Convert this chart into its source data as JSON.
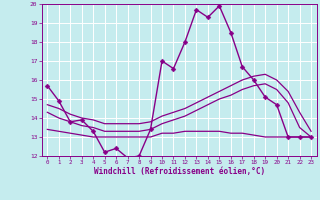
{
  "xlabel": "Windchill (Refroidissement éolien,°C)",
  "xlim": [
    -0.5,
    23.5
  ],
  "ylim": [
    12,
    20
  ],
  "yticks": [
    12,
    13,
    14,
    15,
    16,
    17,
    18,
    19,
    20
  ],
  "xticks": [
    0,
    1,
    2,
    3,
    4,
    5,
    6,
    7,
    8,
    9,
    10,
    11,
    12,
    13,
    14,
    15,
    16,
    17,
    18,
    19,
    20,
    21,
    22,
    23
  ],
  "background_color": "#c5ecee",
  "grid_color": "#ffffff",
  "line_color": "#880088",
  "curves": [
    {
      "x": [
        0,
        1,
        2,
        3,
        4,
        5,
        6,
        7,
        8,
        9,
        10,
        11,
        12,
        13,
        14,
        15,
        16,
        17,
        18,
        19,
        20,
        21,
        22,
        23
      ],
      "y": [
        15.7,
        14.9,
        13.8,
        13.9,
        13.3,
        12.2,
        12.4,
        11.9,
        12.0,
        13.4,
        17.0,
        16.6,
        18.0,
        19.7,
        19.3,
        19.9,
        18.5,
        16.7,
        16.0,
        15.1,
        14.7,
        13.0,
        13.0,
        13.0
      ],
      "marker": "D",
      "marker_size": 2.5,
      "linewidth": 1.0
    },
    {
      "x": [
        0,
        1,
        2,
        3,
        4,
        5,
        6,
        7,
        8,
        9,
        10,
        11,
        12,
        13,
        14,
        15,
        16,
        17,
        18,
        19,
        20,
        21,
        22,
        23
      ],
      "y": [
        14.7,
        14.5,
        14.2,
        14.0,
        13.9,
        13.7,
        13.7,
        13.7,
        13.7,
        13.8,
        14.1,
        14.3,
        14.5,
        14.8,
        15.1,
        15.4,
        15.7,
        16.0,
        16.2,
        16.3,
        16.0,
        15.4,
        14.3,
        13.3
      ],
      "marker": null,
      "linewidth": 0.9
    },
    {
      "x": [
        0,
        1,
        2,
        3,
        4,
        5,
        6,
        7,
        8,
        9,
        10,
        11,
        12,
        13,
        14,
        15,
        16,
        17,
        18,
        19,
        20,
        21,
        22,
        23
      ],
      "y": [
        14.3,
        14.0,
        13.8,
        13.6,
        13.5,
        13.3,
        13.3,
        13.3,
        13.3,
        13.4,
        13.7,
        13.9,
        14.1,
        14.4,
        14.7,
        15.0,
        15.2,
        15.5,
        15.7,
        15.8,
        15.5,
        14.8,
        13.5,
        13.0
      ],
      "marker": null,
      "linewidth": 0.9
    },
    {
      "x": [
        0,
        1,
        2,
        3,
        4,
        5,
        6,
        7,
        8,
        9,
        10,
        11,
        12,
        13,
        14,
        15,
        16,
        17,
        18,
        19,
        20,
        21,
        22,
        23
      ],
      "y": [
        13.4,
        13.3,
        13.2,
        13.1,
        13.0,
        13.0,
        13.0,
        13.0,
        13.0,
        13.0,
        13.2,
        13.2,
        13.3,
        13.3,
        13.3,
        13.3,
        13.2,
        13.2,
        13.1,
        13.0,
        13.0,
        13.0,
        13.0,
        13.0
      ],
      "marker": null,
      "linewidth": 0.9
    }
  ]
}
